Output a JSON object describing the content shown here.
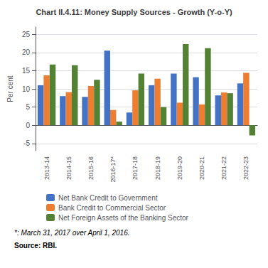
{
  "chart_data": {
    "type": "bar",
    "title": "Chart II.4.11: Money Supply Sources - Growth (Y-o-Y)",
    "categories": [
      "2013-14",
      "2014-15",
      "2015-16",
      "2016-17*",
      "2017-18",
      "2018-19",
      "2019-20",
      "2020-21",
      "2021-22",
      "2022-23"
    ],
    "series": [
      {
        "name": "Net Bank Credit to Government",
        "color": "#4472C4",
        "values": [
          11.0,
          8.0,
          7.8,
          20.5,
          3.5,
          11.0,
          14.2,
          13.2,
          8.2,
          11.5
        ]
      },
      {
        "name": "Bank Credit to Commercial Sector",
        "color": "#ED7D31",
        "values": [
          13.7,
          9.1,
          10.8,
          4.2,
          9.6,
          12.8,
          6.2,
          5.7,
          9.0,
          14.4
        ]
      },
      {
        "name": "Net Foreign Assets of the Banking Sector",
        "color": "#548235",
        "values": [
          16.7,
          16.5,
          12.5,
          1.0,
          14.2,
          5.0,
          22.3,
          21.2,
          8.8,
          -2.8
        ]
      }
    ],
    "ylabel": "Per cent",
    "ylim": [
      -7,
      27
    ],
    "yticks": [
      -5,
      0,
      5,
      10,
      15,
      20,
      25
    ],
    "grid": true,
    "legend": "bottom",
    "annotations": [
      "*: March 31, 2017 over April 1, 2016.",
      "Source: RBI."
    ]
  }
}
